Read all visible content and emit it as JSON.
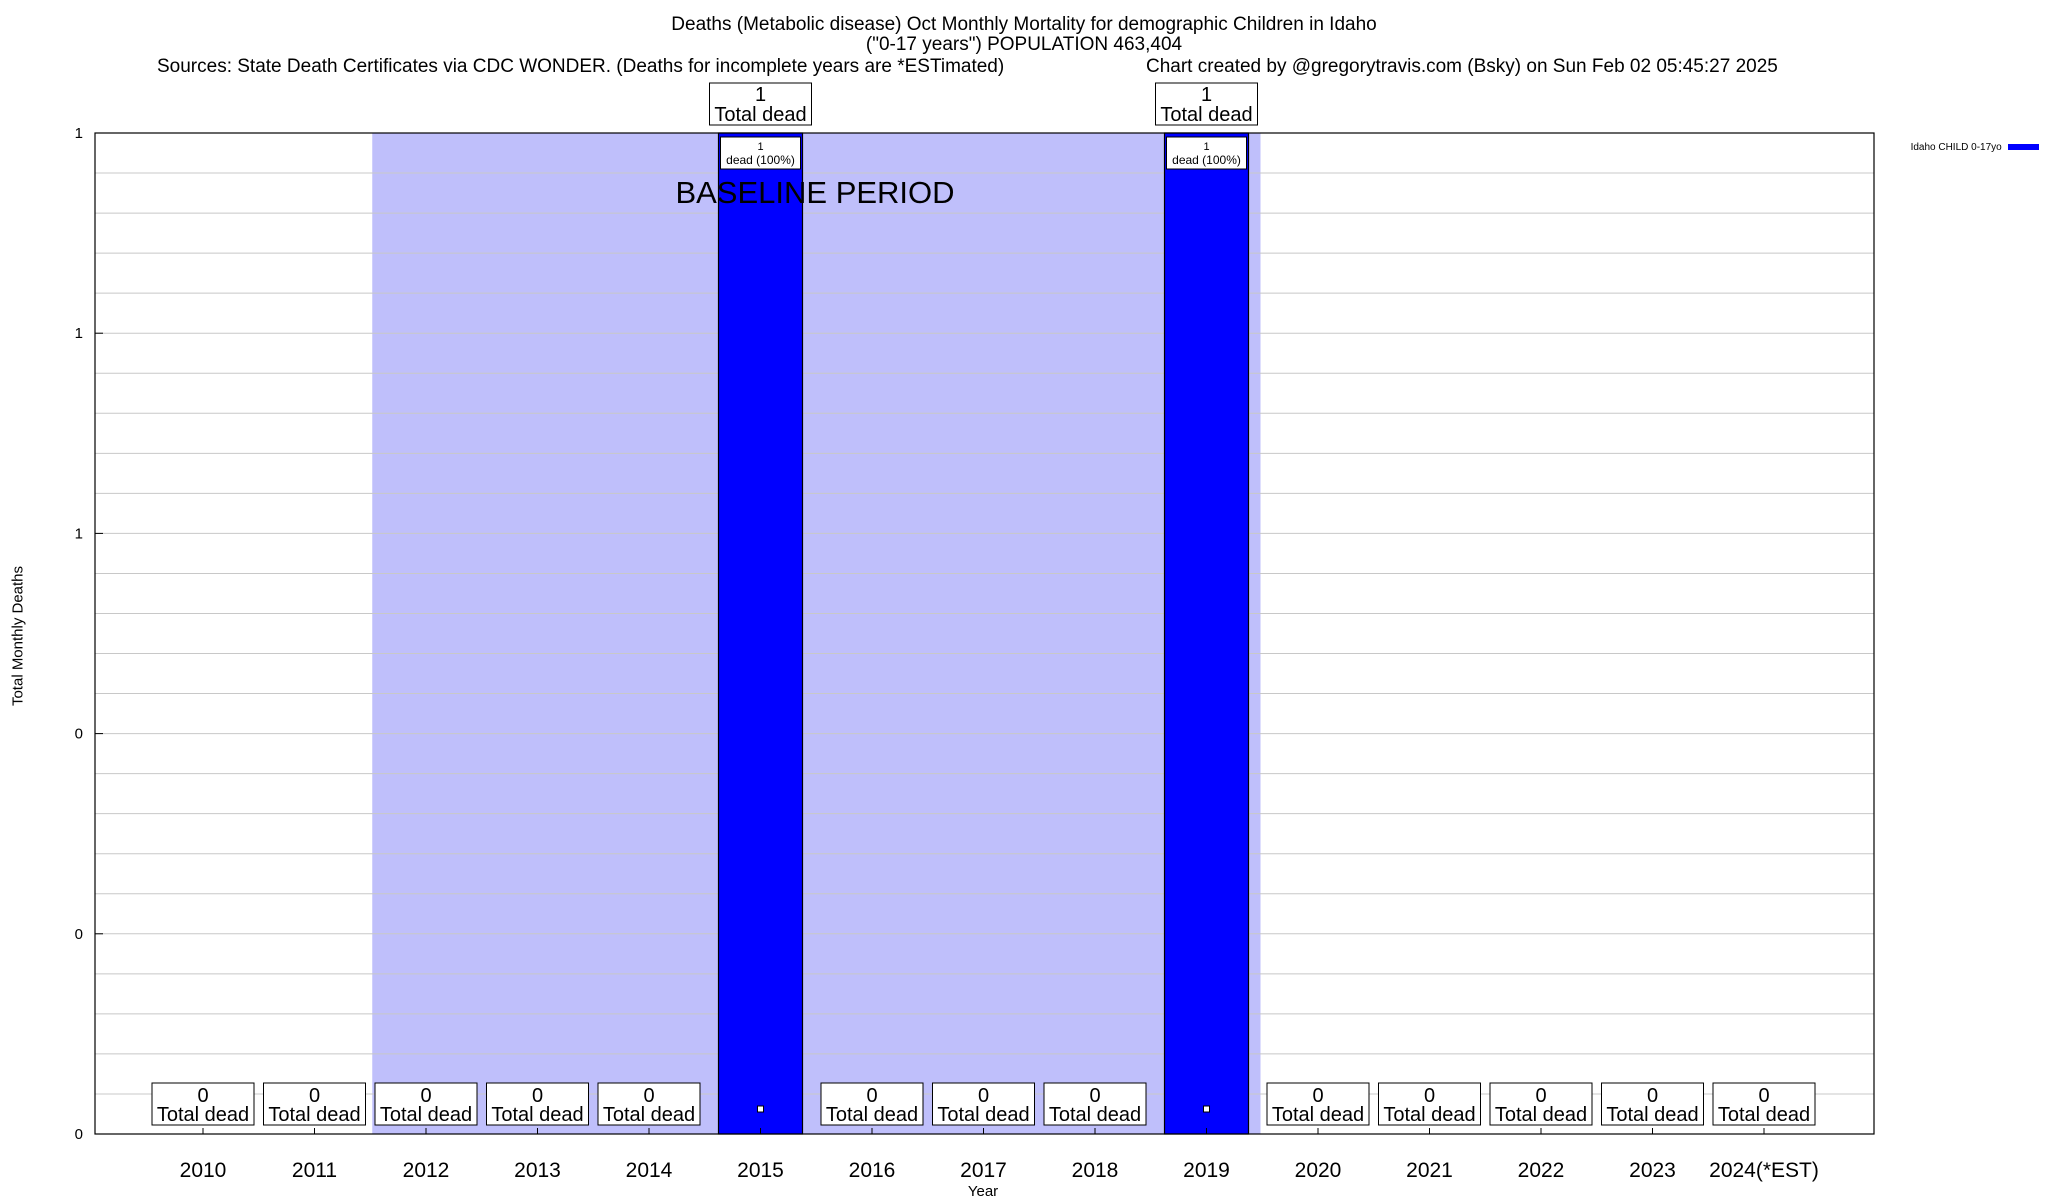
{
  "titles": {
    "line1": "Deaths (Metabolic disease) Oct Monthly Mortality for demographic Children in Idaho",
    "line2": "(\"0-17 years\") POPULATION 463,404",
    "source": "Sources: State Death Certificates via CDC WONDER. (Deaths for incomplete years are *ESTimated)",
    "credit": "Chart created by @gregorytravis.com (Bsky) on Sun Feb 02 05:45:27 2025"
  },
  "colors": {
    "bar": "#0000ff",
    "baseline_band": "#bfbffb",
    "grid": "#c8c8c8"
  },
  "chart_data": {
    "type": "bar",
    "title": "Deaths (Metabolic disease) Oct Monthly Mortality for demographic Children in Idaho",
    "xlabel": "Year",
    "ylabel": "Total Monthly Deaths",
    "categories": [
      "2010",
      "2011",
      "2012",
      "2013",
      "2014",
      "2015",
      "2016",
      "2017",
      "2018",
      "2019",
      "2020",
      "2021",
      "2022",
      "2023",
      "2024(*EST)"
    ],
    "series": [
      {
        "name": "Idaho CHILD 0-17yo",
        "values": [
          0,
          0,
          0,
          0,
          0,
          1,
          0,
          0,
          0,
          1,
          0,
          0,
          0,
          0,
          0
        ]
      }
    ],
    "bar_labels": {
      "total_text": "Total dead",
      "inner_text": "dead (100%)",
      "inner_label_years": [
        "2015",
        "2019"
      ]
    },
    "ylim": [
      0,
      1
    ],
    "y_ticks": [
      {
        "value": 0,
        "label": "0"
      },
      {
        "value": 0.2,
        "label": "0"
      },
      {
        "value": 0.4,
        "label": "0"
      },
      {
        "value": 0.6,
        "label": "1"
      },
      {
        "value": 0.8,
        "label": "1"
      },
      {
        "value": 1.0,
        "label": "1"
      }
    ],
    "baseline_period": {
      "label": "BASELINE PERIOD",
      "start": "2012",
      "end": "2019"
    },
    "grid": true,
    "legend_position": "top-right"
  }
}
